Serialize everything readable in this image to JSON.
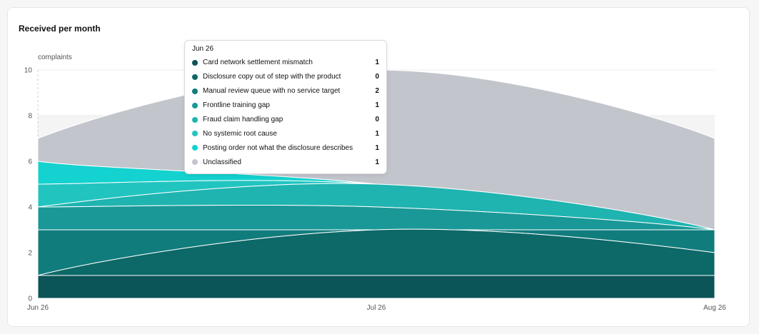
{
  "card": {
    "title": "Received per month"
  },
  "chart_data": {
    "type": "area",
    "stacked": true,
    "ylabel": "complaints",
    "xlabel": "",
    "ylim": [
      0,
      10
    ],
    "yticks": [
      "0",
      "2",
      "4",
      "6",
      "8",
      "10"
    ],
    "categories": [
      "Jun 26",
      "Jul 26",
      "Aug 26"
    ],
    "grid": "horizontal",
    "series": [
      {
        "name": "Card network settlement mismatch",
        "color": "#0b5457",
        "values": [
          1,
          1,
          1
        ]
      },
      {
        "name": "Disclosure copy out of step with the product",
        "color": "#0d6868",
        "values": [
          0,
          2,
          1
        ]
      },
      {
        "name": "Manual review queue with no service target",
        "color": "#117c7c",
        "values": [
          2,
          0,
          1
        ]
      },
      {
        "name": "Frontline training gap",
        "color": "#1a9897",
        "values": [
          1,
          1,
          0
        ]
      },
      {
        "name": "Fraud claim handling gap",
        "color": "#1fb4b0",
        "values": [
          0,
          1,
          0
        ]
      },
      {
        "name": "No systemic root cause",
        "color": "#22c4c0",
        "values": [
          1,
          0,
          0
        ]
      },
      {
        "name": "Posting order not what the disclosure describes",
        "color": "#13d2cf",
        "values": [
          1,
          0,
          0
        ]
      },
      {
        "name": "Unclassified",
        "color": "#c2c5cc",
        "values": [
          1,
          5,
          4
        ]
      }
    ],
    "tooltip": {
      "date": "Jun 26",
      "rows": [
        {
          "label": "Card network settlement mismatch",
          "value": "1",
          "color": "#0b5457"
        },
        {
          "label": "Disclosure copy out of step with the product",
          "value": "0",
          "color": "#0d6868"
        },
        {
          "label": "Manual review queue with no service target",
          "value": "2",
          "color": "#117c7c"
        },
        {
          "label": "Frontline training gap",
          "value": "1",
          "color": "#1a9897"
        },
        {
          "label": "Fraud claim handling gap",
          "value": "0",
          "color": "#1fb4b0"
        },
        {
          "label": "No systemic root cause",
          "value": "1",
          "color": "#22c4c0"
        },
        {
          "label": "Posting order not what the disclosure describes",
          "value": "1",
          "color": "#13d2cf"
        },
        {
          "label": "Unclassified",
          "value": "1",
          "color": "#c2c5cc"
        }
      ]
    }
  }
}
